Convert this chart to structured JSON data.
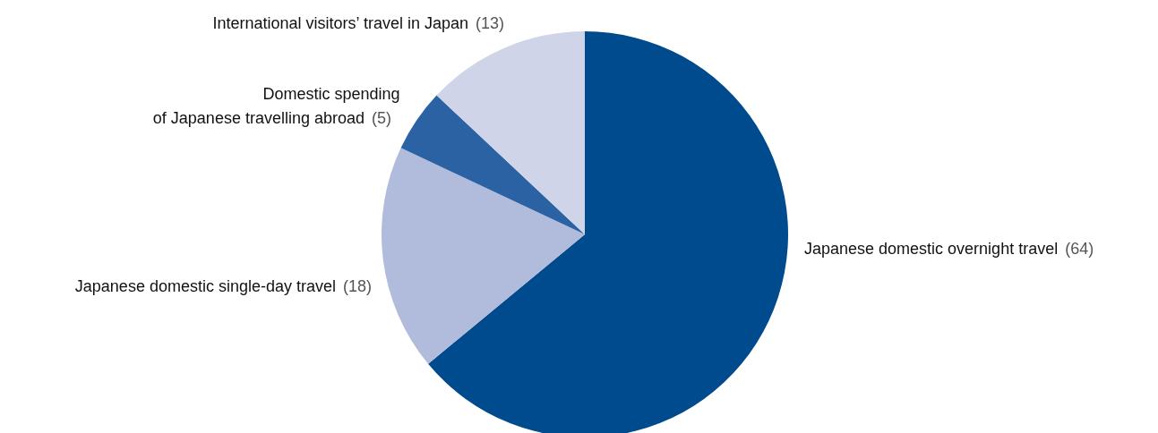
{
  "chart_data": {
    "type": "pie",
    "categories": [
      "Japanese domestic overnight travel",
      "Japanese domestic single-day travel",
      "Domestic spending of Japanese travelling abroad",
      "International visitors’ travel in Japan"
    ],
    "values": [
      64,
      18,
      5,
      13
    ],
    "value_labels": [
      "(64)",
      "(18)",
      "(5)",
      "(13)"
    ],
    "colors": [
      "#004b8d",
      "#b1bbdb",
      "#2b62a3",
      "#d0d4e8"
    ]
  }
}
